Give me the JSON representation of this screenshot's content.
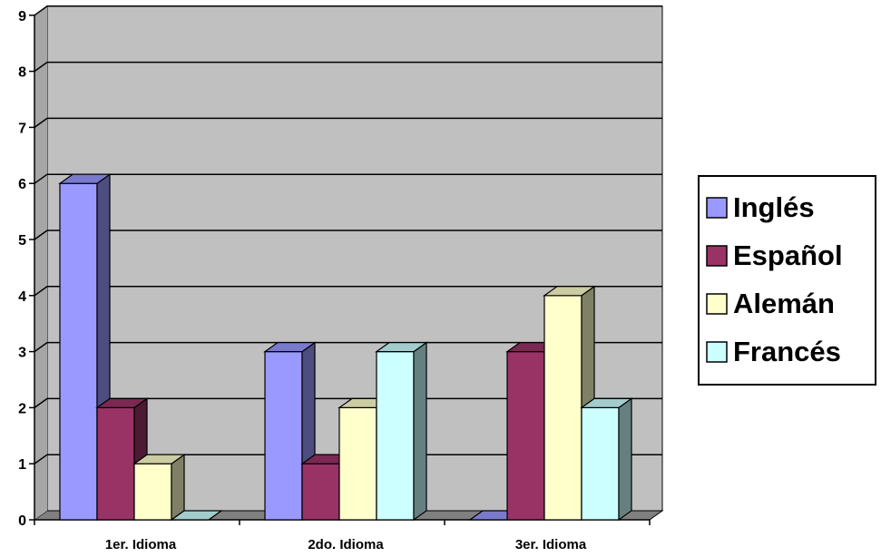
{
  "chart_data": {
    "type": "bar",
    "categories": [
      "1er. Idioma",
      "2do. Idioma",
      "3er. Idioma"
    ],
    "series": [
      {
        "name": "Inglés",
        "values": [
          6,
          3,
          0
        ],
        "color": "#9999ff",
        "dark": "#4d4d80",
        "top": "#7a7acc"
      },
      {
        "name": "Español",
        "values": [
          2,
          1,
          3
        ],
        "color": "#993366",
        "dark": "#4d1a33",
        "top": "#7a2952"
      },
      {
        "name": "Alemán",
        "values": [
          1,
          2,
          4
        ],
        "color": "#ffffcc",
        "dark": "#808066",
        "top": "#ccccA3"
      },
      {
        "name": "Francés",
        "values": [
          0,
          3,
          2
        ],
        "color": "#ccffff",
        "dark": "#668080",
        "top": "#a3cccc"
      }
    ],
    "ylim": [
      0,
      9
    ],
    "yticks": [
      "0",
      "1",
      "2",
      "3",
      "4",
      "5",
      "6",
      "7",
      "8",
      "9"
    ],
    "grid": true,
    "legend_position": "right",
    "plot_bg": "#c0c0c0"
  }
}
